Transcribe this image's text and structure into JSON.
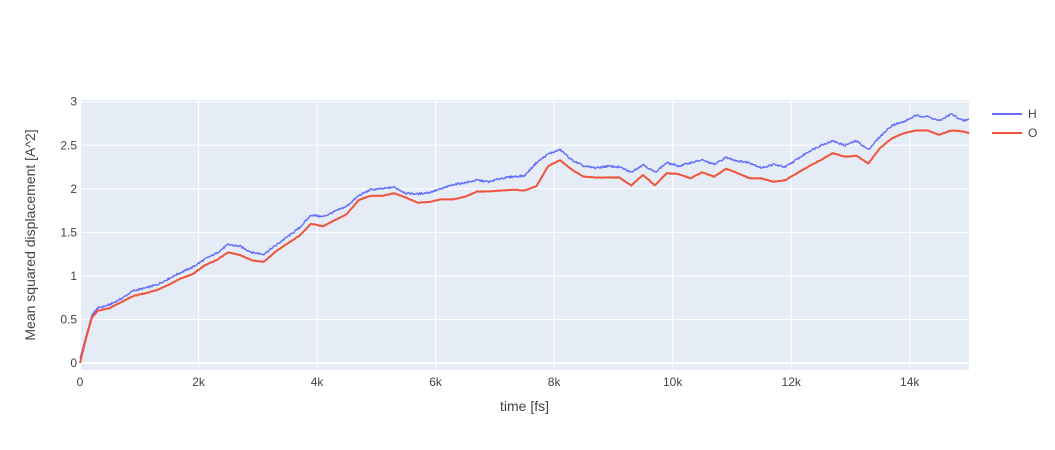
{
  "chart_data": {
    "type": "line",
    "title": "",
    "xlabel": "time [fs]",
    "ylabel": "Mean squared displacement [A^2]",
    "xlim": [
      0,
      15000
    ],
    "ylim": [
      -0.08,
      3.02
    ],
    "xticks": [
      0,
      2000,
      4000,
      6000,
      8000,
      10000,
      12000,
      14000
    ],
    "xtick_labels": [
      "0",
      "2k",
      "4k",
      "6k",
      "8k",
      "10k",
      "12k",
      "14k"
    ],
    "yticks": [
      0,
      0.5,
      1,
      1.5,
      2,
      2.5,
      3
    ],
    "ytick_labels": [
      "0",
      "0.5",
      "1",
      "1.5",
      "2",
      "2.5",
      "3"
    ],
    "grid": true,
    "legend_position": "top-right",
    "series": [
      {
        "name": "H",
        "color": "#636efa",
        "x": [
          0,
          100,
          200,
          300,
          500,
          700,
          900,
          1100,
          1300,
          1500,
          1700,
          1900,
          2100,
          2300,
          2500,
          2700,
          2900,
          3100,
          3300,
          3500,
          3700,
          3900,
          4100,
          4300,
          4500,
          4700,
          4900,
          5100,
          5300,
          5500,
          5700,
          5900,
          6100,
          6300,
          6500,
          6700,
          6900,
          7100,
          7300,
          7500,
          7700,
          7900,
          8100,
          8300,
          8500,
          8700,
          8900,
          9100,
          9300,
          9500,
          9700,
          9900,
          10100,
          10300,
          10500,
          10700,
          10900,
          11100,
          11300,
          11500,
          11700,
          11900,
          12100,
          12300,
          12500,
          12700,
          12900,
          13100,
          13300,
          13500,
          13700,
          13900,
          14100,
          14300,
          14500,
          14700,
          14900,
          15000
        ],
        "y": [
          0.05,
          0.3,
          0.55,
          0.63,
          0.67,
          0.74,
          0.83,
          0.86,
          0.9,
          0.97,
          1.04,
          1.1,
          1.19,
          1.26,
          1.36,
          1.34,
          1.27,
          1.25,
          1.35,
          1.45,
          1.55,
          1.7,
          1.68,
          1.74,
          1.8,
          1.92,
          1.99,
          2.0,
          2.02,
          1.95,
          1.94,
          1.96,
          2.0,
          2.05,
          2.07,
          2.1,
          2.08,
          2.12,
          2.14,
          2.15,
          2.3,
          2.4,
          2.45,
          2.33,
          2.26,
          2.24,
          2.26,
          2.25,
          2.19,
          2.28,
          2.19,
          2.3,
          2.26,
          2.3,
          2.33,
          2.28,
          2.36,
          2.32,
          2.3,
          2.24,
          2.28,
          2.25,
          2.34,
          2.43,
          2.5,
          2.55,
          2.5,
          2.55,
          2.45,
          2.6,
          2.73,
          2.77,
          2.84,
          2.83,
          2.78,
          2.86,
          2.78,
          2.8
        ]
      },
      {
        "name": "O",
        "color": "#ef553b",
        "x": [
          0,
          100,
          200,
          300,
          500,
          700,
          900,
          1100,
          1300,
          1500,
          1700,
          1900,
          2100,
          2300,
          2500,
          2700,
          2900,
          3100,
          3300,
          3500,
          3700,
          3900,
          4100,
          4300,
          4500,
          4700,
          4900,
          5100,
          5300,
          5500,
          5700,
          5900,
          6100,
          6300,
          6500,
          6700,
          6900,
          7100,
          7300,
          7500,
          7700,
          7900,
          8100,
          8300,
          8500,
          8700,
          8900,
          9100,
          9300,
          9500,
          9700,
          9900,
          10100,
          10300,
          10500,
          10700,
          10900,
          11100,
          11300,
          11500,
          11700,
          11900,
          12100,
          12300,
          12500,
          12700,
          12900,
          13100,
          13300,
          13500,
          13700,
          13900,
          14100,
          14300,
          14500,
          14700,
          14900,
          15000
        ],
        "y": [
          0.0,
          0.28,
          0.52,
          0.6,
          0.63,
          0.7,
          0.77,
          0.8,
          0.84,
          0.9,
          0.97,
          1.02,
          1.12,
          1.18,
          1.27,
          1.24,
          1.18,
          1.16,
          1.28,
          1.37,
          1.46,
          1.6,
          1.57,
          1.64,
          1.71,
          1.87,
          1.92,
          1.92,
          1.95,
          1.9,
          1.84,
          1.85,
          1.88,
          1.88,
          1.91,
          1.97,
          1.97,
          1.98,
          1.99,
          1.98,
          2.03,
          2.26,
          2.33,
          2.22,
          2.14,
          2.13,
          2.13,
          2.13,
          2.04,
          2.16,
          2.04,
          2.18,
          2.17,
          2.12,
          2.19,
          2.14,
          2.23,
          2.18,
          2.12,
          2.12,
          2.08,
          2.1,
          2.18,
          2.26,
          2.33,
          2.41,
          2.37,
          2.38,
          2.29,
          2.47,
          2.58,
          2.64,
          2.67,
          2.67,
          2.62,
          2.67,
          2.66,
          2.64
        ]
      }
    ]
  }
}
